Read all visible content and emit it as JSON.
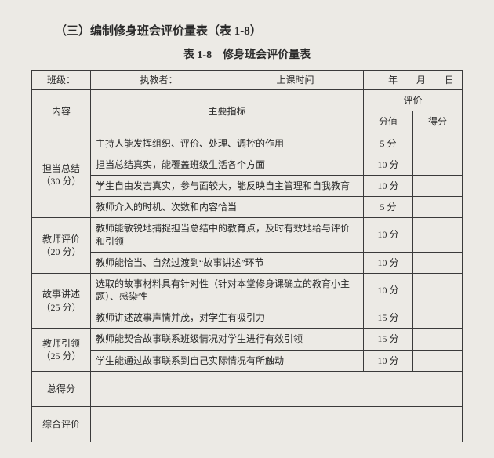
{
  "section_title": "（三）编制修身班会评价量表（表 1-8）",
  "table_caption": "表 1-8　修身班会评价量表",
  "header_row": {
    "class_label": "班级：",
    "teacher_label": "执教者：",
    "time_label": "上课时间",
    "date_value": "年　　月　　日"
  },
  "col_headers": {
    "content": "内容",
    "main_indicator": "主要指标",
    "evaluation": "评价",
    "score_value": "分值",
    "score_earned": "得分"
  },
  "sections": [
    {
      "name": "担当总结",
      "weight": "（30 分）",
      "rows": [
        {
          "indicator": "主持人能发挥组织、评价、处理、调控的作用",
          "score": "5 分"
        },
        {
          "indicator": "担当总结真实，能覆盖班级生活各个方面",
          "score": "10 分"
        },
        {
          "indicator": "学生自由发言真实，参与面较大，能反映自主管理和自我教育",
          "score": "10 分"
        },
        {
          "indicator": "教师介入的时机、次数和内容恰当",
          "score": "5 分"
        }
      ]
    },
    {
      "name": "教师评价",
      "weight": "（20 分）",
      "rows": [
        {
          "indicator": "教师能敏锐地捕捉担当总结中的教育点，及时有效地给与评价和引领",
          "score": "10 分"
        },
        {
          "indicator": "教师能恰当、自然过渡到“故事讲述”环节",
          "score": "10 分"
        }
      ]
    },
    {
      "name": "故事讲述",
      "weight": "（25 分）",
      "rows": [
        {
          "indicator": "选取的故事材料具有针对性（针对本堂修身课确立的教育小主题）、感染性",
          "score": "10 分"
        },
        {
          "indicator": "教师讲述故事声情并茂，对学生有吸引力",
          "score": "15 分"
        }
      ]
    },
    {
      "name": "教师引领",
      "weight": "（25 分）",
      "rows": [
        {
          "indicator": "教师能契合故事联系班级情况对学生进行有效引领",
          "score": "15 分"
        },
        {
          "indicator": "学生能通过故事联系到自己实际情况有所触动",
          "score": "10 分"
        }
      ]
    }
  ],
  "total_row_label": "总得分",
  "overall_row_label": "综合评价"
}
